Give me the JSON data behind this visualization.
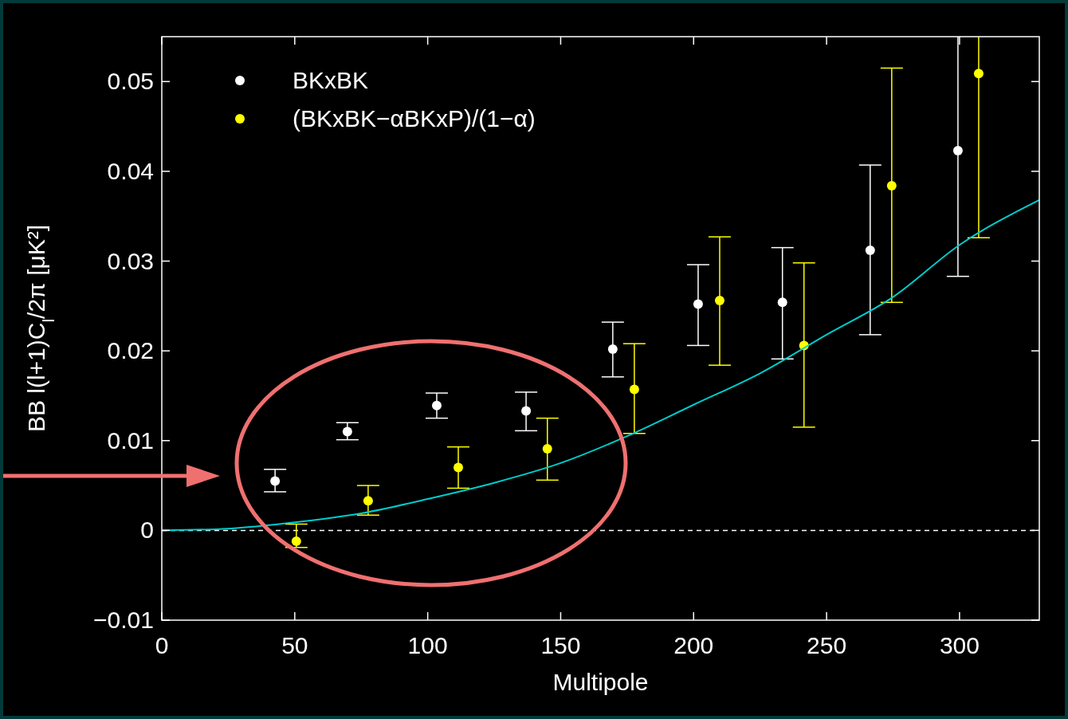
{
  "chart_data": {
    "type": "scatter",
    "xlabel": "Multipole",
    "ylabel": "BB l(l+1)C$_{l}$/2π [μK²]",
    "xlim": [
      0,
      330
    ],
    "xticks": [
      0,
      50,
      100,
      150,
      200,
      250,
      300
    ],
    "ylim": [
      -0.01,
      0.055
    ],
    "yticks": [
      {
        "value": -0.01,
        "label": "−0.01"
      },
      0,
      0.01,
      0.02,
      0.03,
      0.04,
      0.05
    ],
    "legend": "top left",
    "marker": "circle",
    "grid": false,
    "ref_lines": [
      {
        "axis": "y",
        "value": 0,
        "color": "#ffffff",
        "line_style": "dashed"
      }
    ],
    "series": [
      {
        "name": "BKxBK",
        "color": "#ffffff",
        "x": [
          42.6,
          69.8,
          103.4,
          137,
          169.6,
          201.7,
          233.4,
          266.4,
          299.4
        ],
        "values": [
          0.0055,
          0.011,
          0.0139,
          0.0133,
          0.0202,
          0.0252,
          0.0254,
          0.0312,
          0.0423
        ],
        "errors": [
          [
            0.0043,
            0.0068
          ],
          [
            0.0101,
            0.012
          ],
          [
            0.0125,
            0.0153
          ],
          [
            0.0111,
            0.0154
          ],
          [
            0.0171,
            0.0232
          ],
          [
            0.0206,
            0.0296
          ],
          [
            0.0191,
            0.0315
          ],
          [
            0.0218,
            0.0407
          ],
          [
            0.0283,
            0.055
          ]
        ]
      },
      {
        "name": "(BKxBK−αBKxP)/(1−α)",
        "color": "#ffff00",
        "x": [
          50.6,
          77.6,
          111.5,
          145,
          177.7,
          209.8,
          241.5,
          274.5,
          307.2
        ],
        "values": [
          -0.0012,
          0.0033,
          0.007,
          0.0091,
          0.0157,
          0.0256,
          0.0206,
          0.0384,
          0.0509
        ],
        "errors": [
          [
            -0.0019,
            0.0007
          ],
          [
            0.0017,
            0.005
          ],
          [
            0.0047,
            0.0093
          ],
          [
            0.0056,
            0.0125
          ],
          [
            0.0108,
            0.0208
          ],
          [
            0.0184,
            0.0327
          ],
          [
            0.0115,
            0.0298
          ],
          [
            0.0254,
            0.0515
          ],
          [
            0.0326,
            0.055
          ]
        ]
      },
      {
        "type": "line",
        "color": "#00cccc",
        "marker": "none",
        "x": [
          0,
          25,
          50,
          75,
          100,
          125,
          150,
          175,
          200,
          225,
          250,
          275,
          300,
          330
        ],
        "values": [
          0,
          0.0002,
          0.0009,
          0.0019,
          0.0035,
          0.0053,
          0.0075,
          0.0105,
          0.014,
          0.0175,
          0.0218,
          0.026,
          0.0318,
          0.0368
        ]
      }
    ]
  }
}
